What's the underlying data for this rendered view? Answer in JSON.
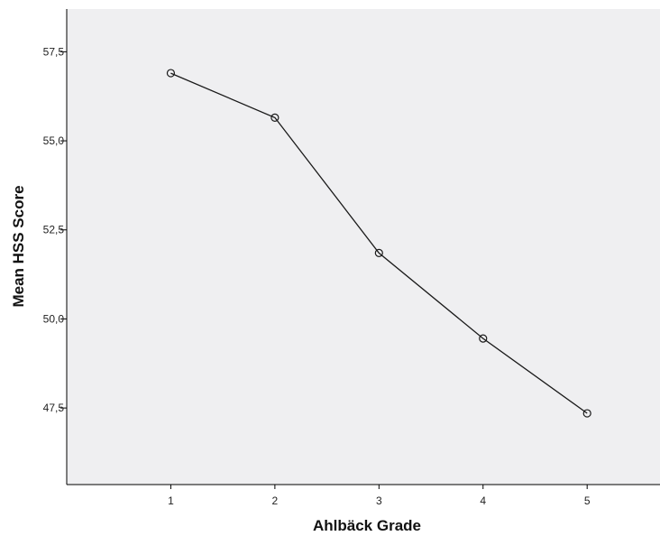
{
  "chart_data": {
    "type": "line",
    "title": "",
    "xlabel": "Ahlbäck Grade",
    "ylabel": "Mean HSS Score",
    "x": [
      1,
      2,
      3,
      4,
      5
    ],
    "x_tick_labels": [
      "1",
      "2",
      "3",
      "4",
      "5"
    ],
    "y_ticks": [
      47.5,
      50.0,
      52.5,
      55.0,
      57.5
    ],
    "y_tick_labels": [
      "47,5",
      "50,0",
      "52,5",
      "55,0",
      "57,5"
    ],
    "xlim": [
      0,
      5.7
    ],
    "ylim": [
      45.35,
      58.7
    ],
    "grid": false,
    "legend": "none",
    "series": [
      {
        "values": [
          56.9,
          55.65,
          51.85,
          49.45,
          47.35
        ]
      }
    ],
    "colors": {
      "plot_background": "#efeff1",
      "line": "#1a1a1a",
      "axis": "#000000"
    }
  }
}
